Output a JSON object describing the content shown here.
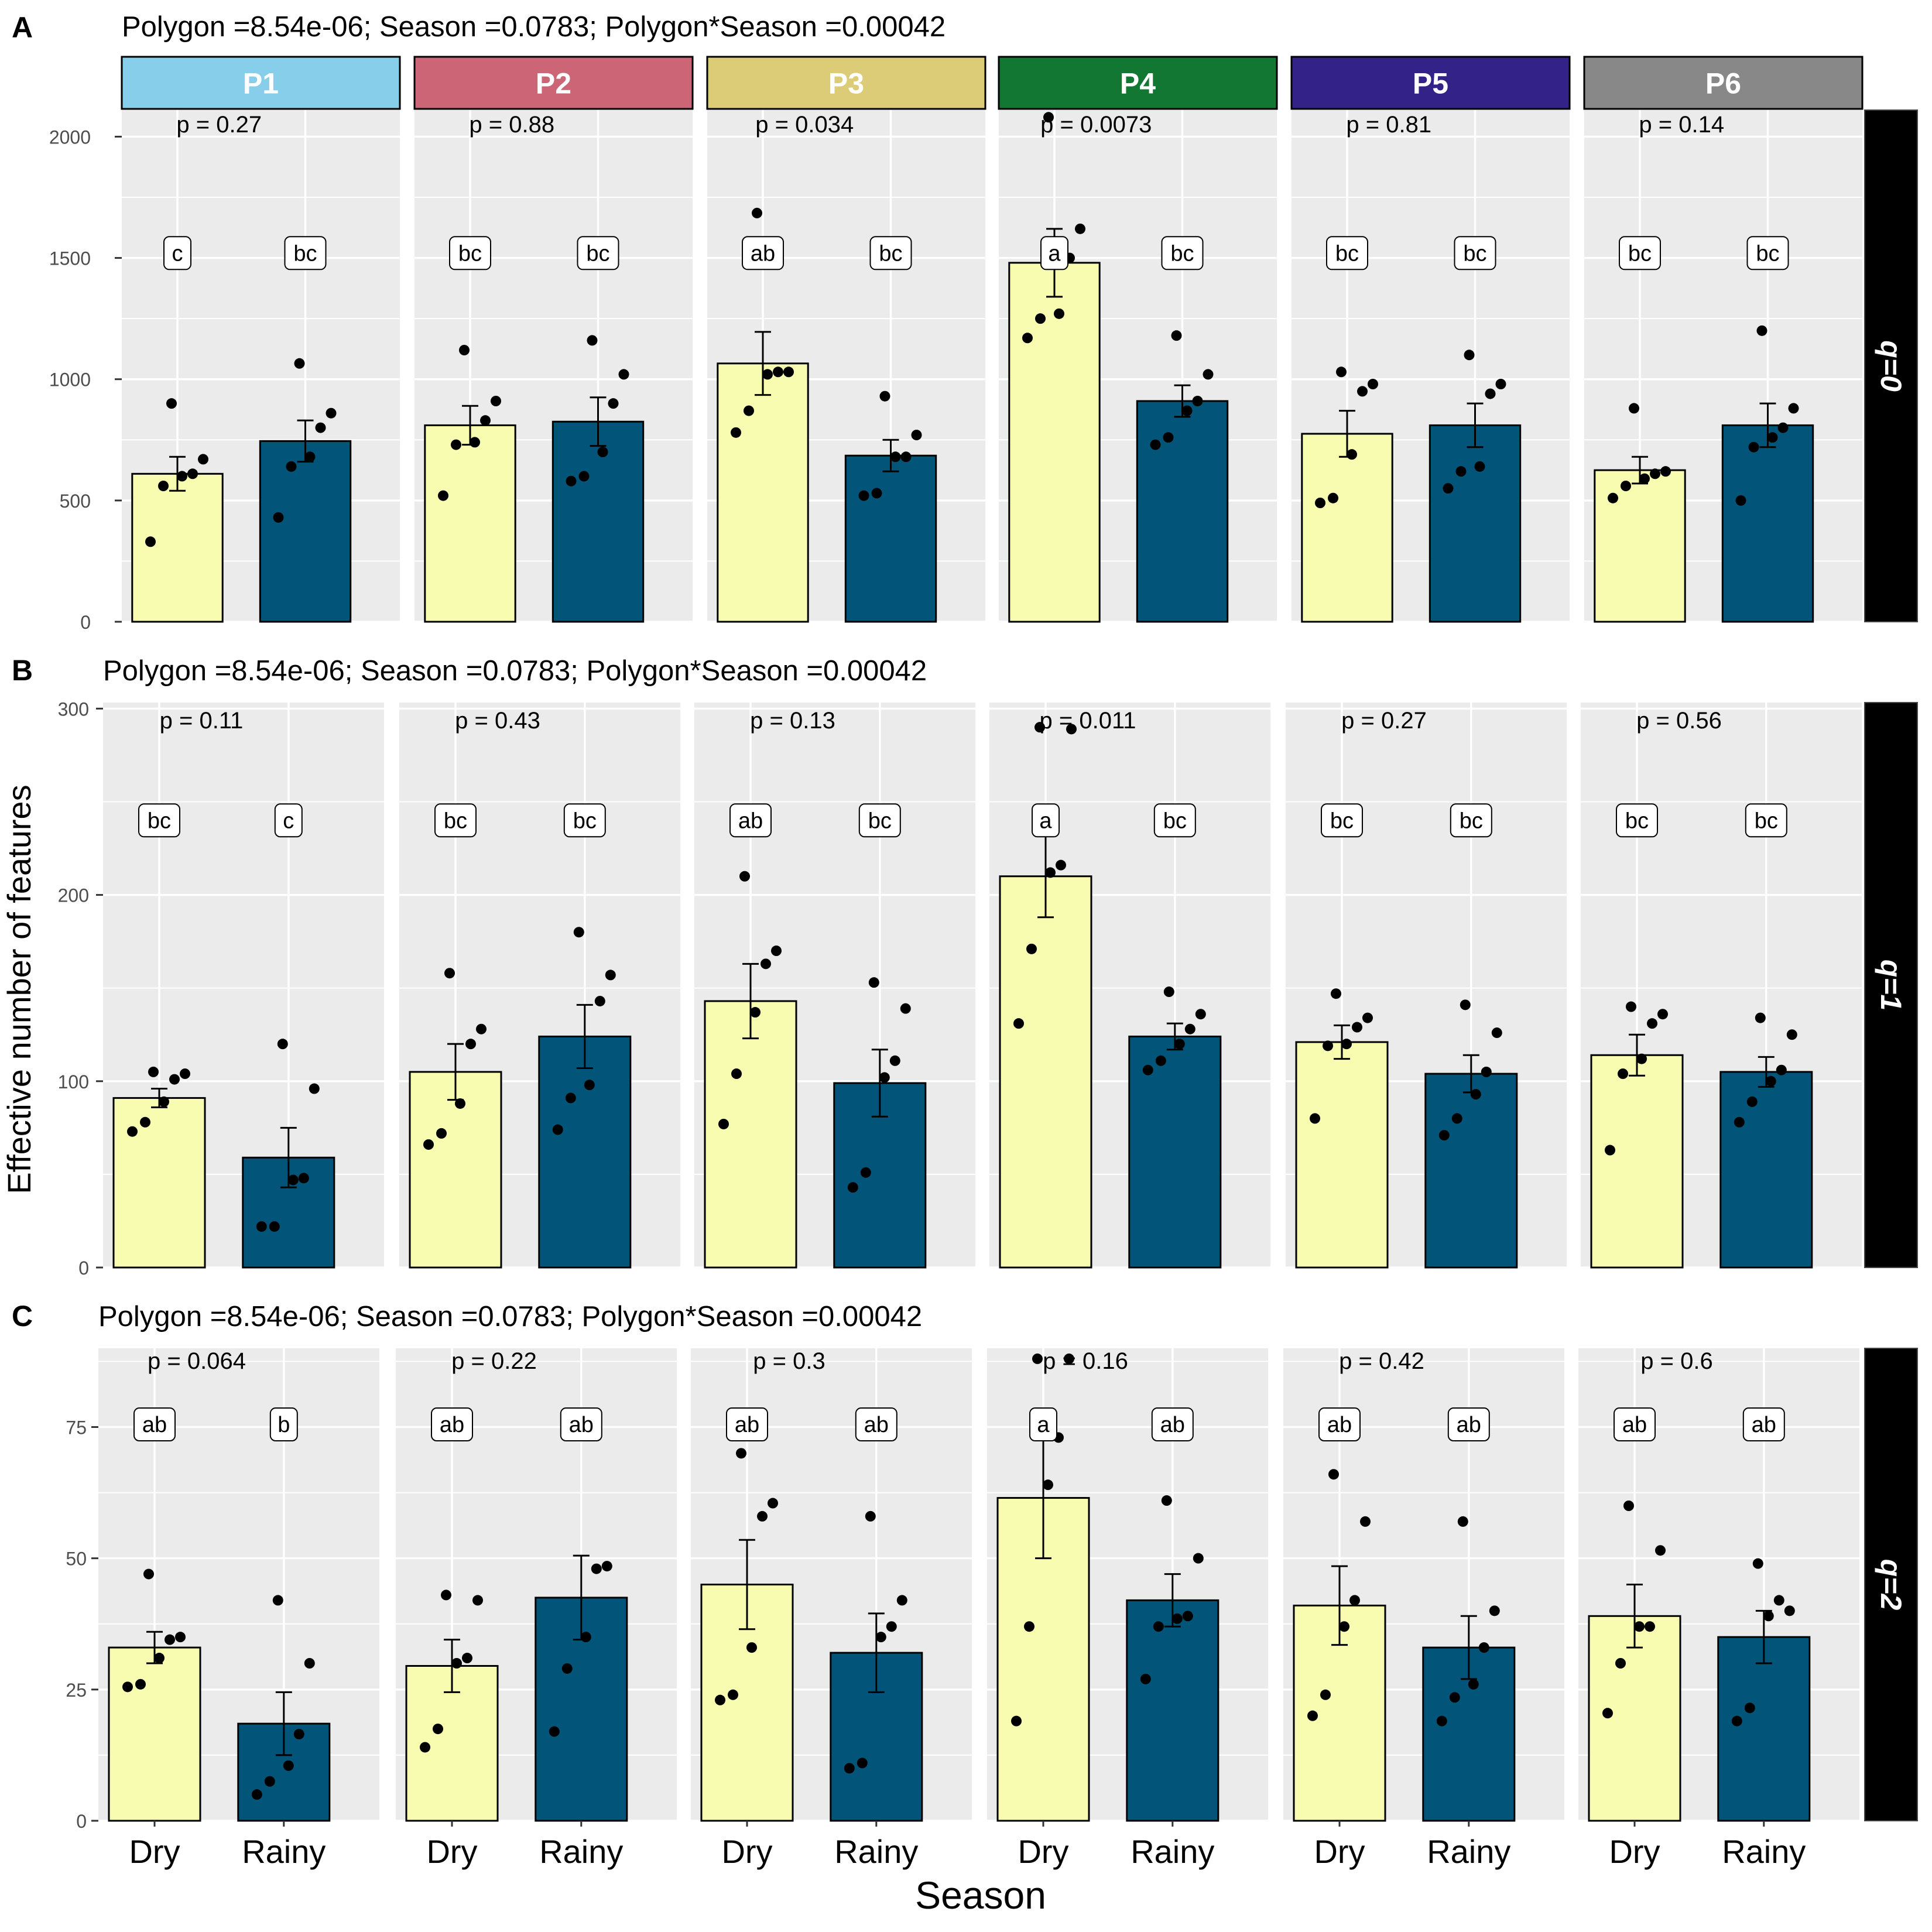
{
  "figure": {
    "y_axis_title": "Effective number of features",
    "x_axis_title": "Season",
    "season_labels": [
      "Dry",
      "Rainy"
    ]
  },
  "colors": {
    "dry_bar": "#F7FCB0",
    "rainy_bar": "#025578",
    "panel_bg": "#EBEBEB",
    "grid": "#FFFFFF",
    "strip_right_bg": "#000000",
    "strip_right_text": "#FFFFFF"
  },
  "polygons": [
    {
      "label": "P1",
      "color": "#87CEEB"
    },
    {
      "label": "P2",
      "color": "#CC6677"
    },
    {
      "label": "P3",
      "color": "#DDCC77"
    },
    {
      "label": "P4",
      "color": "#117733"
    },
    {
      "label": "P5",
      "color": "#332288"
    },
    {
      "label": "P6",
      "color": "#888888"
    }
  ],
  "chart_data": [
    {
      "type": "bar",
      "panel_letter": "A",
      "title": "Polygon =8.54e-06; Season =0.0783; Polygon*Season =0.00042",
      "facet_label": "q=0",
      "ylim": [
        0,
        2100
      ],
      "yticks": [
        0,
        500,
        1000,
        1500,
        2000
      ],
      "letters_y": 1520,
      "groups": [
        {
          "polygon": "P1",
          "p_value": "p = 0.27",
          "dry": {
            "mean": 610,
            "se": 70,
            "letter": "c",
            "points": [
              330,
              560,
              600,
              610,
              670,
              900
            ]
          },
          "rainy": {
            "mean": 745,
            "se": 85,
            "letter": "bc",
            "points": [
              430,
              640,
              680,
              800,
              860,
              1065
            ]
          }
        },
        {
          "polygon": "P2",
          "p_value": "p = 0.88",
          "dry": {
            "mean": 810,
            "se": 80,
            "letter": "bc",
            "points": [
              520,
              730,
              740,
              830,
              910,
              1120
            ]
          },
          "rainy": {
            "mean": 825,
            "se": 100,
            "letter": "bc",
            "points": [
              580,
              600,
              700,
              900,
              1020,
              1160
            ]
          }
        },
        {
          "polygon": "P3",
          "p_value": "p = 0.034",
          "dry": {
            "mean": 1065,
            "se": 130,
            "letter": "ab",
            "points": [
              780,
              870,
              1020,
              1030,
              1030,
              1685
            ]
          },
          "rainy": {
            "mean": 685,
            "se": 65,
            "letter": "bc",
            "points": [
              520,
              530,
              680,
              680,
              770,
              930
            ]
          }
        },
        {
          "polygon": "P4",
          "p_value": "p = 0.0073",
          "dry": {
            "mean": 1480,
            "se": 140,
            "letter": "a",
            "points": [
              1170,
              1250,
              1270,
              1500,
              1620,
              2080
            ]
          },
          "rainy": {
            "mean": 910,
            "se": 65,
            "letter": "bc",
            "points": [
              730,
              760,
              870,
              910,
              1020,
              1180
            ]
          }
        },
        {
          "polygon": "P5",
          "p_value": "p = 0.81",
          "dry": {
            "mean": 775,
            "se": 95,
            "letter": "bc",
            "points": [
              490,
              510,
              690,
              950,
              980,
              1030
            ]
          },
          "rainy": {
            "mean": 810,
            "se": 90,
            "letter": "bc",
            "points": [
              550,
              620,
              640,
              940,
              980,
              1100
            ]
          }
        },
        {
          "polygon": "P6",
          "p_value": "p = 0.14",
          "dry": {
            "mean": 625,
            "se": 55,
            "letter": "bc",
            "points": [
              510,
              560,
              590,
              610,
              620,
              880
            ]
          },
          "rainy": {
            "mean": 810,
            "se": 90,
            "letter": "bc",
            "points": [
              500,
              720,
              760,
              800,
              880,
              1200
            ]
          }
        }
      ]
    },
    {
      "type": "bar",
      "panel_letter": "B",
      "title": "Polygon =8.54e-06; Season =0.0783; Polygon*Season =0.00042",
      "facet_label": "q=1",
      "ylim": [
        0,
        302
      ],
      "yticks": [
        0,
        100,
        200,
        300
      ],
      "letters_y": 240,
      "groups": [
        {
          "polygon": "P1",
          "p_value": "p = 0.11",
          "dry": {
            "mean": 91,
            "se": 5,
            "letter": "bc",
            "points": [
              73,
              78,
              89,
              101,
              104,
              105
            ]
          },
          "rainy": {
            "mean": 59,
            "se": 16,
            "letter": "c",
            "points": [
              22,
              22,
              47,
              48,
              96,
              120
            ]
          }
        },
        {
          "polygon": "P2",
          "p_value": "p = 0.43",
          "dry": {
            "mean": 105,
            "se": 15,
            "letter": "bc",
            "points": [
              66,
              72,
              88,
              120,
              128,
              158
            ]
          },
          "rainy": {
            "mean": 124,
            "se": 17,
            "letter": "bc",
            "points": [
              74,
              91,
              98,
              143,
              157,
              180
            ]
          }
        },
        {
          "polygon": "P3",
          "p_value": "p = 0.13",
          "dry": {
            "mean": 143,
            "se": 20,
            "letter": "ab",
            "points": [
              77,
              104,
              137,
              163,
              170,
              210
            ]
          },
          "rainy": {
            "mean": 99,
            "se": 18,
            "letter": "bc",
            "points": [
              43,
              51,
              102,
              111,
              139,
              153
            ]
          }
        },
        {
          "polygon": "P4",
          "p_value": "p = 0.011",
          "dry": {
            "mean": 210,
            "se": 22,
            "letter": "a",
            "points": [
              131,
              171,
              212,
              216,
              289,
              290
            ]
          },
          "rainy": {
            "mean": 124,
            "se": 7,
            "letter": "bc",
            "points": [
              106,
              111,
              120,
              128,
              136,
              148
            ]
          }
        },
        {
          "polygon": "P5",
          "p_value": "p = 0.27",
          "dry": {
            "mean": 121,
            "se": 9,
            "letter": "bc",
            "points": [
              80,
              119,
              120,
              129,
              134,
              147
            ]
          },
          "rainy": {
            "mean": 104,
            "se": 10,
            "letter": "bc",
            "points": [
              71,
              80,
              93,
              105,
              126,
              141
            ]
          }
        },
        {
          "polygon": "P6",
          "p_value": "p = 0.56",
          "dry": {
            "mean": 114,
            "se": 11,
            "letter": "bc",
            "points": [
              63,
              104,
              112,
              131,
              136,
              140
            ]
          },
          "rainy": {
            "mean": 105,
            "se": 8,
            "letter": "bc",
            "points": [
              78,
              89,
              100,
              106,
              125,
              134
            ]
          }
        }
      ]
    },
    {
      "type": "bar",
      "panel_letter": "C",
      "title": "Polygon =8.54e-06; Season =0.0783; Polygon*Season =0.00042",
      "facet_label": "q=2",
      "ylim": [
        0,
        90
      ],
      "yticks": [
        0,
        25,
        50,
        75
      ],
      "letters_y": 75.5,
      "groups": [
        {
          "polygon": "P1",
          "p_value": "p = 0.064",
          "dry": {
            "mean": 33,
            "se": 3,
            "letter": "ab",
            "points": [
              25.5,
              26,
              31,
              34.5,
              35,
              47
            ]
          },
          "rainy": {
            "mean": 18.5,
            "se": 6,
            "letter": "b",
            "points": [
              5,
              7.5,
              10.5,
              16.5,
              30,
              42
            ]
          }
        },
        {
          "polygon": "P2",
          "p_value": "p = 0.22",
          "dry": {
            "mean": 29.5,
            "se": 5,
            "letter": "ab",
            "points": [
              14,
              17.5,
              30,
              31,
              42,
              43
            ]
          },
          "rainy": {
            "mean": 42.5,
            "se": 8,
            "letter": "ab",
            "points": [
              17,
              29,
              35,
              48,
              48.5,
              76
            ]
          }
        },
        {
          "polygon": "P3",
          "p_value": "p = 0.3",
          "dry": {
            "mean": 45,
            "se": 8.5,
            "letter": "ab",
            "points": [
              23,
              24,
              33,
              58,
              60.5,
              70
            ]
          },
          "rainy": {
            "mean": 32,
            "se": 7.5,
            "letter": "ab",
            "points": [
              10,
              11,
              35,
              37,
              42,
              58
            ]
          }
        },
        {
          "polygon": "P4",
          "p_value": "p = 0.16",
          "dry": {
            "mean": 61.5,
            "se": 11.5,
            "letter": "a",
            "points": [
              19,
              37,
              64,
              73,
              88,
              88
            ]
          },
          "rainy": {
            "mean": 42,
            "se": 5,
            "letter": "ab",
            "points": [
              27,
              37,
              38.5,
              39,
              50,
              61
            ]
          }
        },
        {
          "polygon": "P5",
          "p_value": "p = 0.42",
          "dry": {
            "mean": 41,
            "se": 7.5,
            "letter": "ab",
            "points": [
              20,
              24,
              37,
              42,
              57,
              66
            ]
          },
          "rainy": {
            "mean": 33,
            "se": 6,
            "letter": "ab",
            "points": [
              19,
              23.5,
              26,
              33,
              40,
              57
            ]
          }
        },
        {
          "polygon": "P6",
          "p_value": "p = 0.6",
          "dry": {
            "mean": 39,
            "se": 6,
            "letter": "ab",
            "points": [
              20.5,
              30,
              37,
              37,
              51.5,
              60
            ]
          },
          "rainy": {
            "mean": 35,
            "se": 5,
            "letter": "ab",
            "points": [
              19,
              21.5,
              39,
              42,
              40,
              49
            ]
          }
        }
      ]
    }
  ]
}
